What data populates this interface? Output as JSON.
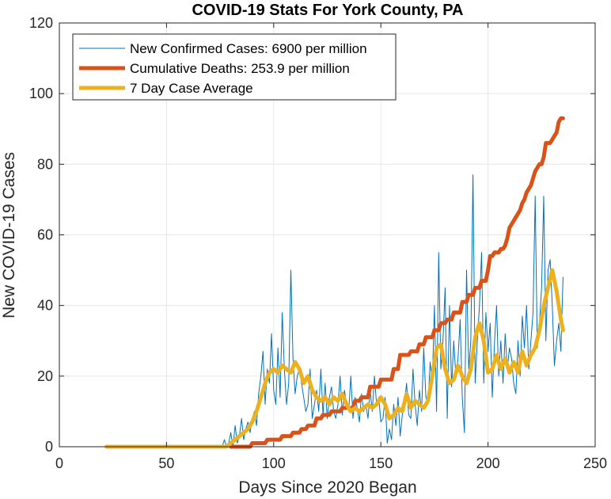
{
  "chart_data": {
    "type": "line",
    "title": "COVID-19 Stats For York County, PA",
    "xlabel": "Days Since 2020 Began",
    "ylabel": "New COVID-19 Cases",
    "xlim": [
      0,
      250
    ],
    "ylim": [
      0,
      120
    ],
    "xticks": [
      0,
      50,
      100,
      150,
      200,
      250
    ],
    "yticks": [
      0,
      20,
      40,
      60,
      80,
      100,
      120
    ],
    "grid": true,
    "legend_position": "top-left",
    "series": [
      {
        "name": "New Confirmed Cases: 6900 per million",
        "color": "#0072BD",
        "width": "thin",
        "x": [
          22,
          30,
          40,
          50,
          60,
          70,
          76,
          77,
          78,
          79,
          80,
          81,
          82,
          83,
          84,
          85,
          86,
          87,
          88,
          89,
          90,
          91,
          92,
          93,
          94,
          95,
          96,
          97,
          98,
          99,
          100,
          101,
          102,
          103,
          104,
          105,
          106,
          107,
          108,
          109,
          110,
          111,
          112,
          113,
          114,
          115,
          116,
          117,
          118,
          119,
          120,
          121,
          122,
          123,
          124,
          125,
          126,
          127,
          128,
          129,
          130,
          131,
          132,
          133,
          134,
          135,
          136,
          137,
          138,
          139,
          140,
          141,
          142,
          143,
          144,
          145,
          146,
          147,
          148,
          149,
          150,
          151,
          152,
          153,
          154,
          155,
          156,
          157,
          158,
          159,
          160,
          161,
          162,
          163,
          164,
          165,
          166,
          167,
          168,
          169,
          170,
          171,
          172,
          173,
          174,
          175,
          176,
          177,
          178,
          179,
          180,
          181,
          182,
          183,
          184,
          185,
          186,
          187,
          188,
          189,
          190,
          191,
          192,
          193,
          194,
          195,
          196,
          197,
          198,
          199,
          200,
          201,
          202,
          203,
          204,
          205,
          206,
          207,
          208,
          209,
          210,
          211,
          212,
          213,
          214,
          215,
          216,
          217,
          218,
          219,
          220,
          221,
          222,
          223,
          224,
          225,
          226,
          227,
          228,
          229,
          230,
          231,
          232,
          233,
          234,
          235
        ],
        "y": [
          0,
          0,
          0,
          0,
          0,
          0,
          0,
          2,
          0,
          1,
          4,
          0,
          6,
          1,
          3,
          8,
          2,
          5,
          7,
          4,
          8,
          10,
          6,
          15,
          20,
          27,
          12,
          22,
          18,
          32,
          16,
          12,
          28,
          14,
          38,
          22,
          12,
          18,
          50,
          25,
          15,
          20,
          22,
          18,
          14,
          10,
          12,
          22,
          8,
          12,
          16,
          10,
          22,
          9,
          18,
          8,
          14,
          17,
          10,
          8,
          12,
          20,
          9,
          16,
          12,
          10,
          20,
          8,
          14,
          11,
          7,
          15,
          10,
          12,
          8,
          16,
          10,
          20,
          12,
          14,
          7,
          8,
          14,
          1,
          5,
          2,
          12,
          6,
          14,
          3,
          9,
          12,
          18,
          9,
          8,
          22,
          12,
          6,
          16,
          10,
          28,
          14,
          12,
          24,
          18,
          40,
          10,
          55,
          22,
          30,
          45,
          8,
          40,
          17,
          30,
          20,
          25,
          36,
          14,
          4,
          50,
          22,
          30,
          77,
          18,
          30,
          40,
          55,
          18,
          38,
          27,
          35,
          14,
          29,
          40,
          20,
          30,
          18,
          32,
          22,
          28,
          25,
          18,
          15,
          30,
          20,
          37,
          28,
          40,
          22,
          30,
          38,
          71,
          28,
          35,
          45,
          71,
          30,
          50,
          53,
          40,
          23,
          30,
          35,
          27,
          48
        ]
      },
      {
        "name": "Cumulative Deaths: 253.9 per million",
        "color": "#D95319",
        "width": "thick",
        "x": [
          80,
          89,
          90,
          92,
          96,
          97,
          103,
          104,
          108,
          109,
          112,
          113,
          115,
          116,
          119,
          120,
          122,
          123,
          126,
          127,
          131,
          132,
          137,
          138,
          140,
          141,
          144,
          145,
          149,
          150,
          155,
          156,
          158,
          159,
          163,
          164,
          167,
          168,
          170,
          171,
          174,
          175,
          177,
          178,
          180,
          181,
          183,
          184,
          187,
          188,
          190,
          191,
          193,
          194,
          196,
          197,
          199,
          200,
          201,
          202,
          203,
          204,
          205,
          206,
          207,
          208,
          209,
          210,
          211,
          212,
          213,
          214,
          215,
          216,
          217,
          218,
          219,
          220,
          221,
          222,
          223,
          224,
          225,
          226,
          227,
          228,
          229,
          230,
          231,
          232,
          233,
          234,
          235
        ],
        "y": [
          0,
          0,
          1,
          1,
          1,
          2,
          2,
          3,
          3,
          4,
          4,
          5,
          5,
          6,
          6,
          8,
          8,
          9,
          9,
          10,
          10,
          11,
          11,
          13,
          13,
          14,
          14,
          17,
          17,
          19,
          19,
          22,
          22,
          26,
          26,
          27,
          27,
          29,
          29,
          31,
          31,
          33,
          33,
          35,
          35,
          36,
          36,
          38,
          38,
          41,
          41,
          43,
          43,
          45,
          45,
          47,
          47,
          50,
          54,
          54,
          55,
          55,
          55,
          56,
          56,
          57,
          59,
          62,
          63,
          64,
          65,
          66,
          67,
          69,
          70,
          72,
          73,
          74,
          76,
          78,
          79,
          80,
          80,
          82,
          86,
          86,
          86,
          87,
          88,
          89,
          92,
          93,
          93
        ],
        "y_axis_note": ""
      },
      {
        "name": "7 Day Case Average",
        "color": "#EDB120",
        "width": "thick",
        "x": [
          22,
          30,
          40,
          50,
          60,
          70,
          78,
          80,
          82,
          84,
          86,
          88,
          90,
          92,
          94,
          96,
          98,
          100,
          102,
          104,
          106,
          108,
          110,
          112,
          114,
          116,
          118,
          120,
          122,
          124,
          126,
          128,
          130,
          132,
          134,
          136,
          138,
          140,
          142,
          144,
          146,
          148,
          150,
          152,
          154,
          156,
          158,
          160,
          162,
          164,
          166,
          168,
          170,
          172,
          174,
          176,
          178,
          180,
          182,
          184,
          186,
          188,
          190,
          192,
          194,
          196,
          198,
          200,
          202,
          204,
          206,
          208,
          210,
          212,
          214,
          216,
          218,
          220,
          222,
          224,
          226,
          228,
          230,
          232,
          234,
          235
        ],
        "y": [
          0,
          0,
          0,
          0,
          0,
          0,
          0,
          1,
          2,
          3,
          4,
          5,
          7,
          10,
          14,
          18,
          21,
          22,
          21,
          23,
          22,
          21,
          24,
          22,
          18,
          20,
          16,
          14,
          13,
          14,
          12,
          14,
          13,
          15,
          12,
          10,
          11,
          10,
          11,
          12,
          11,
          12,
          14,
          12,
          8,
          9,
          11,
          10,
          15,
          11,
          13,
          12,
          11,
          13,
          20,
          28,
          29,
          22,
          18,
          19,
          23,
          20,
          18,
          22,
          31,
          35,
          30,
          21,
          22,
          26,
          22,
          25,
          21,
          24,
          21,
          27,
          23,
          26,
          28,
          33,
          40,
          45,
          50,
          44,
          36,
          33
        ]
      }
    ]
  }
}
